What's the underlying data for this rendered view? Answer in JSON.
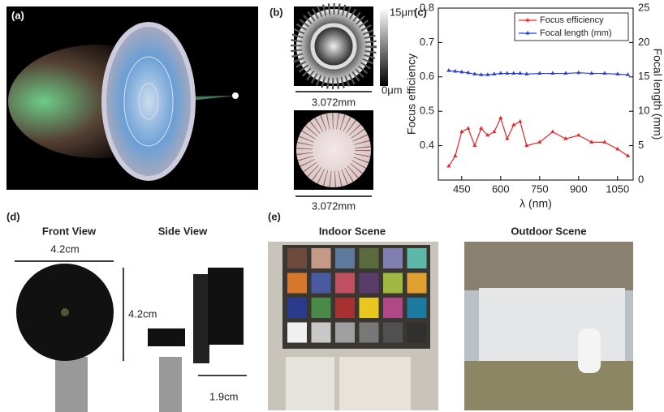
{
  "panels": {
    "a": "(a)",
    "b": "(b)",
    "c": "(c)",
    "d": "(d)",
    "e": "(e)"
  },
  "panel_b": {
    "colorbar_max": "15μm",
    "colorbar_min": "0μm",
    "width_top": "3.072mm",
    "width_bottom": "3.072mm"
  },
  "panel_d": {
    "front_title": "Front View",
    "side_title": "Side View",
    "front_width": "4.2cm",
    "front_height": "4.2cm",
    "side_width": "1.9cm"
  },
  "panel_e": {
    "indoor_title": "Indoor Scene",
    "outdoor_title": "Outdoor Scene"
  },
  "chart_data": {
    "type": "line",
    "x_label": "λ (nm)",
    "y_label": "Focus efficiency",
    "y2_label": "Focal length (mm)",
    "x": [
      400,
      425,
      450,
      475,
      500,
      525,
      550,
      575,
      600,
      625,
      650,
      675,
      700,
      750,
      800,
      850,
      900,
      950,
      1000,
      1050,
      1090
    ],
    "series": [
      {
        "name": "Focus efficiency",
        "color": "#e8262a",
        "values": [
          0.34,
          0.37,
          0.44,
          0.45,
          0.4,
          0.45,
          0.43,
          0.44,
          0.48,
          0.42,
          0.46,
          0.47,
          0.4,
          0.41,
          0.44,
          0.42,
          0.43,
          0.41,
          0.41,
          0.39,
          0.37
        ]
      },
      {
        "name": "Focal length (mm)",
        "color": "#2a3cd6",
        "axis": "y2",
        "values": [
          15.9,
          15.8,
          15.7,
          15.6,
          15.4,
          15.3,
          15.3,
          15.4,
          15.5,
          15.5,
          15.5,
          15.5,
          15.4,
          15.5,
          15.5,
          15.5,
          15.6,
          15.5,
          15.5,
          15.4,
          15.3
        ]
      }
    ],
    "xlim": [
      360,
      1110
    ],
    "xticks": [
      450,
      600,
      750,
      900,
      1050
    ],
    "ylim": [
      0.3,
      0.8
    ],
    "yticks": [
      0.4,
      0.5,
      0.6,
      0.7,
      0.8
    ],
    "y2lim": [
      0,
      25
    ],
    "y2ticks": [
      0,
      5,
      10,
      15,
      20,
      25
    ],
    "grid": false,
    "legend": "upper right"
  }
}
